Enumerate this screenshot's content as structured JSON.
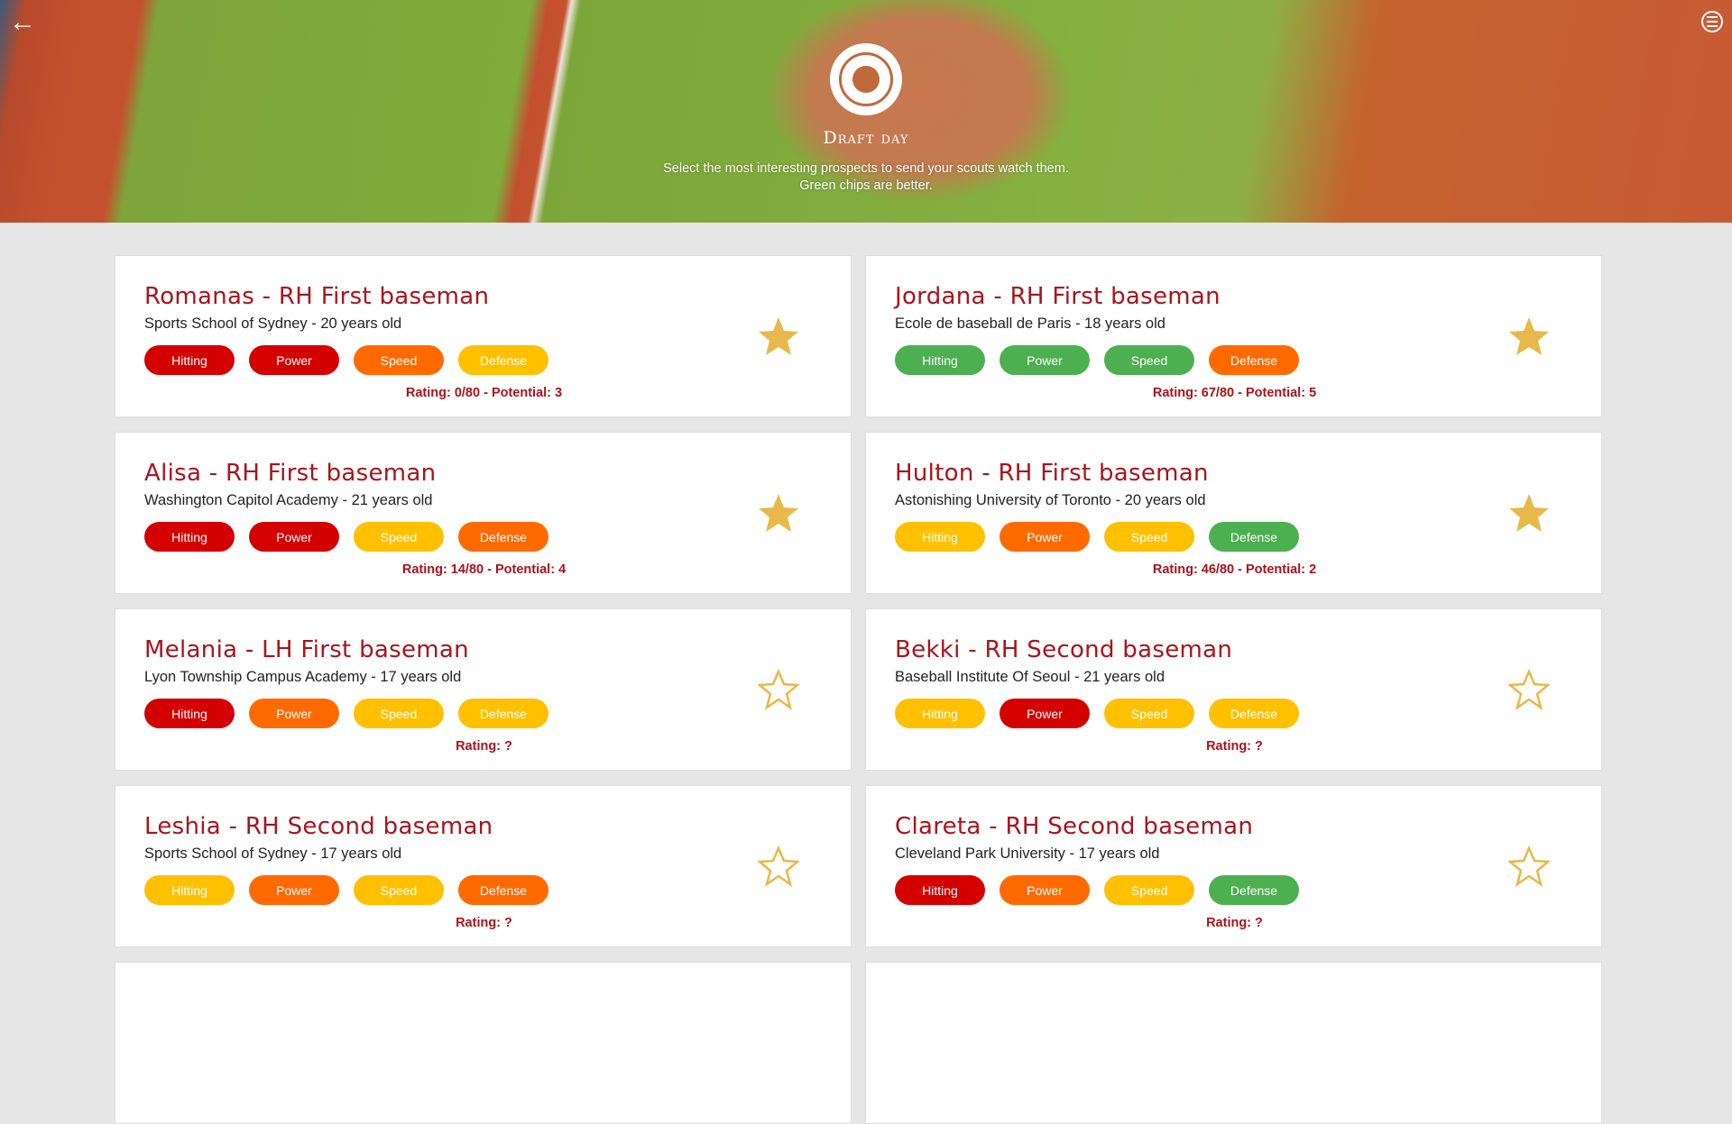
{
  "header": {
    "title": "Draft day",
    "subtitle_line1": "Select the most interesting prospects to send your scouts watch them.",
    "subtitle_line2": "Green chips are better.",
    "back_icon": "arrow-left-icon",
    "menu_icon": "menu-icon",
    "logo": "baseball-laurel-logo"
  },
  "colors": {
    "red": "#d40000",
    "orange": "#ff6a00",
    "yellow": "#ffc000",
    "green": "#4caf50",
    "star": "#e8b94a",
    "title": "#a8141b"
  },
  "chip_labels": [
    "Hitting",
    "Power",
    "Speed",
    "Defense"
  ],
  "prospects": [
    {
      "name": "Romanas - RH First baseman",
      "school": "Sports School of Sydney",
      "age": " - 20 years old",
      "chips": [
        "red",
        "red",
        "orange",
        "yellow"
      ],
      "rating": "Rating: 0/80 - Potential: 3",
      "starred": true
    },
    {
      "name": "Jordana - RH First baseman",
      "school": "Ecole de baseball de Paris",
      "age": " - 18 years old",
      "chips": [
        "green",
        "green",
        "green",
        "orange"
      ],
      "rating": "Rating: 67/80 - Potential: 5",
      "starred": true
    },
    {
      "name": "Alisa - RH First baseman",
      "school": "Washington Capitol Academy",
      "age": " - 21 years old",
      "chips": [
        "red",
        "red",
        "yellow",
        "orange"
      ],
      "rating": "Rating: 14/80 - Potential: 4",
      "starred": true
    },
    {
      "name": "Hulton - RH First baseman",
      "school": "Astonishing University of Toronto",
      "age": " - 20 years old",
      "chips": [
        "yellow",
        "orange",
        "yellow",
        "green"
      ],
      "rating": "Rating: 46/80 - Potential: 2",
      "starred": true
    },
    {
      "name": "Melania - LH First baseman",
      "school": "Lyon Township Campus Academy",
      "age": " - 17 years old",
      "chips": [
        "red",
        "orange",
        "yellow",
        "yellow"
      ],
      "rating": "Rating: ?",
      "starred": false
    },
    {
      "name": "Bekki - RH Second baseman",
      "school": "Baseball Institute Of Seoul",
      "age": " - 21 years old",
      "chips": [
        "yellow",
        "red",
        "yellow",
        "yellow"
      ],
      "rating": "Rating: ?",
      "starred": false
    },
    {
      "name": "Leshia - RH Second baseman",
      "school": "Sports School of Sydney",
      "age": " - 17 years old",
      "chips": [
        "yellow",
        "orange",
        "yellow",
        "orange"
      ],
      "rating": "Rating: ?",
      "starred": false
    },
    {
      "name": "Clareta - RH Second baseman",
      "school": "Cleveland Park University",
      "age": " - 17 years old",
      "chips": [
        "red",
        "orange",
        "yellow",
        "green"
      ],
      "rating": "Rating: ?",
      "starred": false
    }
  ]
}
